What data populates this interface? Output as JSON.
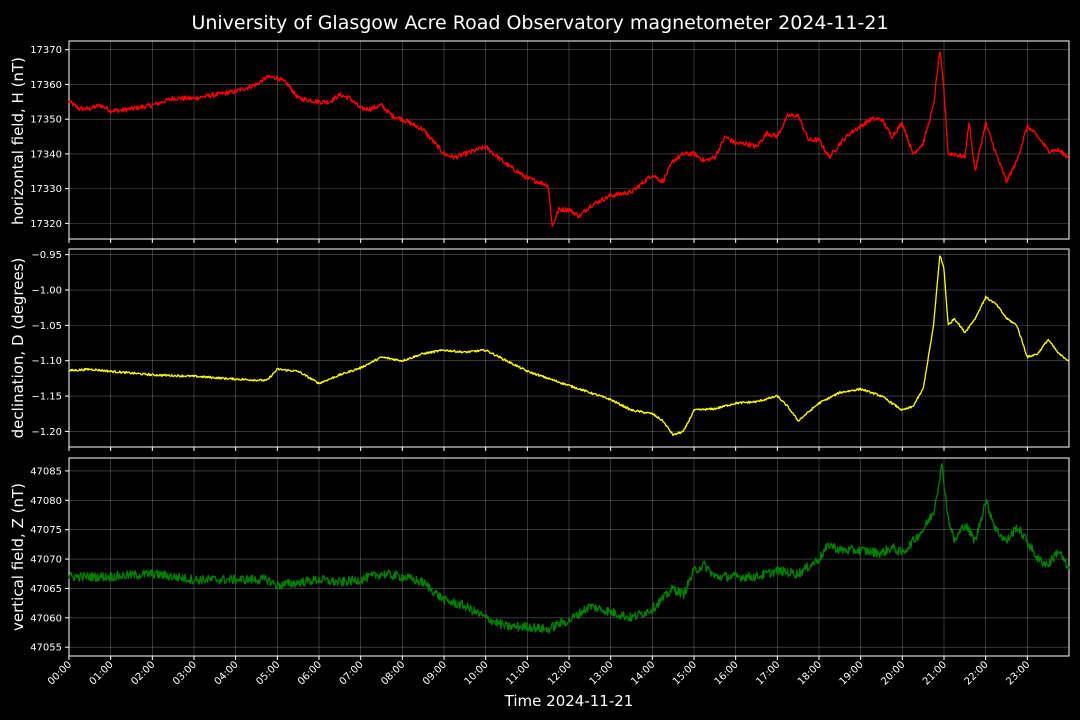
{
  "chart_data": {
    "type": "line",
    "title": "University of Glasgow Acre Road Observatory magnetometer 2024-11-21",
    "xlabel": "Time 2024-11-21",
    "x_tick_labels": [
      "00:00",
      "01:00",
      "02:00",
      "03:00",
      "04:00",
      "05:00",
      "06:00",
      "07:00",
      "08:00",
      "09:00",
      "10:00",
      "11:00",
      "12:00",
      "13:00",
      "14:00",
      "15:00",
      "16:00",
      "17:00",
      "18:00",
      "19:00",
      "20:00",
      "21:00",
      "22:00",
      "23:00"
    ],
    "xlim_hours": [
      0,
      24
    ],
    "grid": true,
    "panels": [
      {
        "ylabel": "horizontal field, H (nT)",
        "color": "#ff0000",
        "ylim": [
          17315.5,
          17372.5
        ],
        "yticks": [
          17320,
          17330,
          17340,
          17350,
          17360,
          17370
        ],
        "ytick_labels": [
          "17320",
          "17330",
          "17340",
          "17350",
          "17360",
          "17370"
        ],
        "x": [
          0,
          0.25,
          0.5,
          0.75,
          1,
          1.25,
          1.5,
          2,
          2.5,
          2.75,
          3,
          3.5,
          4,
          4.5,
          4.75,
          5,
          5.25,
          5.5,
          6,
          6.25,
          6.5,
          6.75,
          7,
          7.25,
          7.5,
          7.75,
          8,
          8.5,
          9,
          9.25,
          9.5,
          10,
          10.5,
          11,
          11.5,
          11.6,
          11.75,
          12,
          12.25,
          12.5,
          13,
          13.5,
          14,
          14.25,
          14.5,
          14.75,
          15,
          15.25,
          15.5,
          15.75,
          16,
          16.25,
          16.5,
          16.75,
          17,
          17.25,
          17.5,
          17.75,
          18,
          18.25,
          18.5,
          18.75,
          19,
          19.25,
          19.5,
          19.75,
          20,
          20.25,
          20.5,
          20.75,
          20.9,
          21,
          21.1,
          21.25,
          21.5,
          21.6,
          21.75,
          22,
          22.25,
          22.5,
          22.75,
          23,
          23.25,
          23.5,
          23.75,
          24
        ],
        "y": [
          17355,
          17353,
          17353,
          17354,
          17352.5,
          17352.5,
          17353,
          17354,
          17356,
          17356,
          17356,
          17357,
          17358,
          17360,
          17362,
          17362,
          17360,
          17356,
          17355,
          17355,
          17357,
          17356,
          17353,
          17353,
          17354,
          17351,
          17350,
          17347,
          17340,
          17339,
          17340,
          17342,
          17337,
          17333,
          17331,
          17319,
          17324,
          17324,
          17322,
          17325,
          17328,
          17329,
          17334,
          17332,
          17338,
          17340,
          17340,
          17338,
          17339,
          17345,
          17343,
          17343,
          17342,
          17346,
          17345,
          17351,
          17351,
          17344,
          17344,
          17339,
          17343,
          17346,
          17348,
          17350,
          17350,
          17345,
          17349,
          17340,
          17343,
          17354,
          17370,
          17358,
          17340,
          17340,
          17339,
          17349,
          17335,
          17349,
          17340,
          17332,
          17338,
          17348,
          17345,
          17341,
          17341,
          17339
        ],
        "noise": 0.7
      },
      {
        "ylabel": "declination, D (degrees)",
        "color": "#ffff00",
        "ylim": [
          -1.222,
          -0.942
        ],
        "yticks": [
          -1.2,
          -1.15,
          -1.1,
          -1.05,
          -1.0,
          -0.95
        ],
        "ytick_labels": [
          "−1.20",
          "−1.15",
          "−1.10",
          "−1.05",
          "−1.00",
          "−0.95"
        ],
        "x": [
          0,
          0.5,
          1,
          2,
          3,
          4,
          4.75,
          5,
          5.5,
          6,
          6.5,
          7,
          7.5,
          8,
          8.5,
          9,
          9.5,
          10,
          10.5,
          11,
          11.5,
          12,
          12.5,
          13,
          13.5,
          14,
          14.25,
          14.5,
          14.75,
          15,
          15.5,
          16,
          16.5,
          17,
          17.25,
          17.5,
          18,
          18.5,
          19,
          19.5,
          20,
          20.25,
          20.5,
          20.75,
          20.9,
          21,
          21.1,
          21.25,
          21.5,
          21.75,
          22,
          22.25,
          22.5,
          22.75,
          23,
          23.25,
          23.5,
          23.75,
          24
        ],
        "y": [
          -1.114,
          -1.112,
          -1.115,
          -1.12,
          -1.122,
          -1.126,
          -1.128,
          -1.112,
          -1.115,
          -1.132,
          -1.12,
          -1.11,
          -1.095,
          -1.1,
          -1.09,
          -1.085,
          -1.088,
          -1.085,
          -1.1,
          -1.115,
          -1.125,
          -1.135,
          -1.145,
          -1.155,
          -1.17,
          -1.175,
          -1.185,
          -1.205,
          -1.2,
          -1.17,
          -1.168,
          -1.16,
          -1.158,
          -1.15,
          -1.165,
          -1.185,
          -1.16,
          -1.145,
          -1.14,
          -1.15,
          -1.17,
          -1.165,
          -1.14,
          -1.05,
          -0.95,
          -0.97,
          -1.05,
          -1.04,
          -1.06,
          -1.04,
          -1.01,
          -1.02,
          -1.04,
          -1.05,
          -1.095,
          -1.09,
          -1.07,
          -1.09,
          -1.1
        ],
        "noise": 0.0015
      },
      {
        "ylabel": "vertical field, Z (nT)",
        "color": "#008000",
        "ylim": [
          47053.5,
          47087.2
        ],
        "yticks": [
          47055,
          47060,
          47065,
          47070,
          47075,
          47080,
          47085
        ],
        "ytick_labels": [
          "47055",
          "47060",
          "47065",
          "47070",
          "47075",
          "47080",
          "47085"
        ],
        "x": [
          0,
          1,
          2,
          3,
          4,
          4.75,
          5,
          6,
          6.5,
          7,
          7.5,
          8,
          8.5,
          9,
          9.5,
          10,
          10.5,
          11,
          11.5,
          11.75,
          12,
          12.5,
          13,
          13.5,
          14,
          14.5,
          14.75,
          15,
          15.25,
          15.5,
          16,
          16.5,
          17,
          17.5,
          18,
          18.25,
          18.5,
          18.75,
          19,
          19.5,
          19.75,
          20,
          20.25,
          20.5,
          20.75,
          20.95,
          21.1,
          21.25,
          21.5,
          21.75,
          22,
          22.25,
          22.5,
          22.75,
          23,
          23.25,
          23.5,
          23.75,
          24
        ],
        "y": [
          47067,
          47067,
          47067.5,
          47066.5,
          47066.5,
          47066.5,
          47065.5,
          47066.5,
          47066,
          47066.5,
          47067.5,
          47067,
          47066,
          47063,
          47062,
          47060,
          47058.5,
          47058.5,
          47058,
          47059,
          47059.5,
          47062,
          47061,
          47060,
          47061.5,
          47065,
          47064,
          47068,
          47069,
          47067,
          47067,
          47067,
          47068,
          47067.5,
          47070,
          47072.5,
          47071.5,
          47071.5,
          47071.5,
          47071,
          47072,
          47071,
          47073,
          47075,
          47078,
          47086,
          47077,
          47073,
          47076,
          47073,
          47080,
          47075,
          47073,
          47075.5,
          47073,
          47070,
          47069,
          47071.5,
          47068
        ],
        "noise": 0.8
      }
    ]
  }
}
